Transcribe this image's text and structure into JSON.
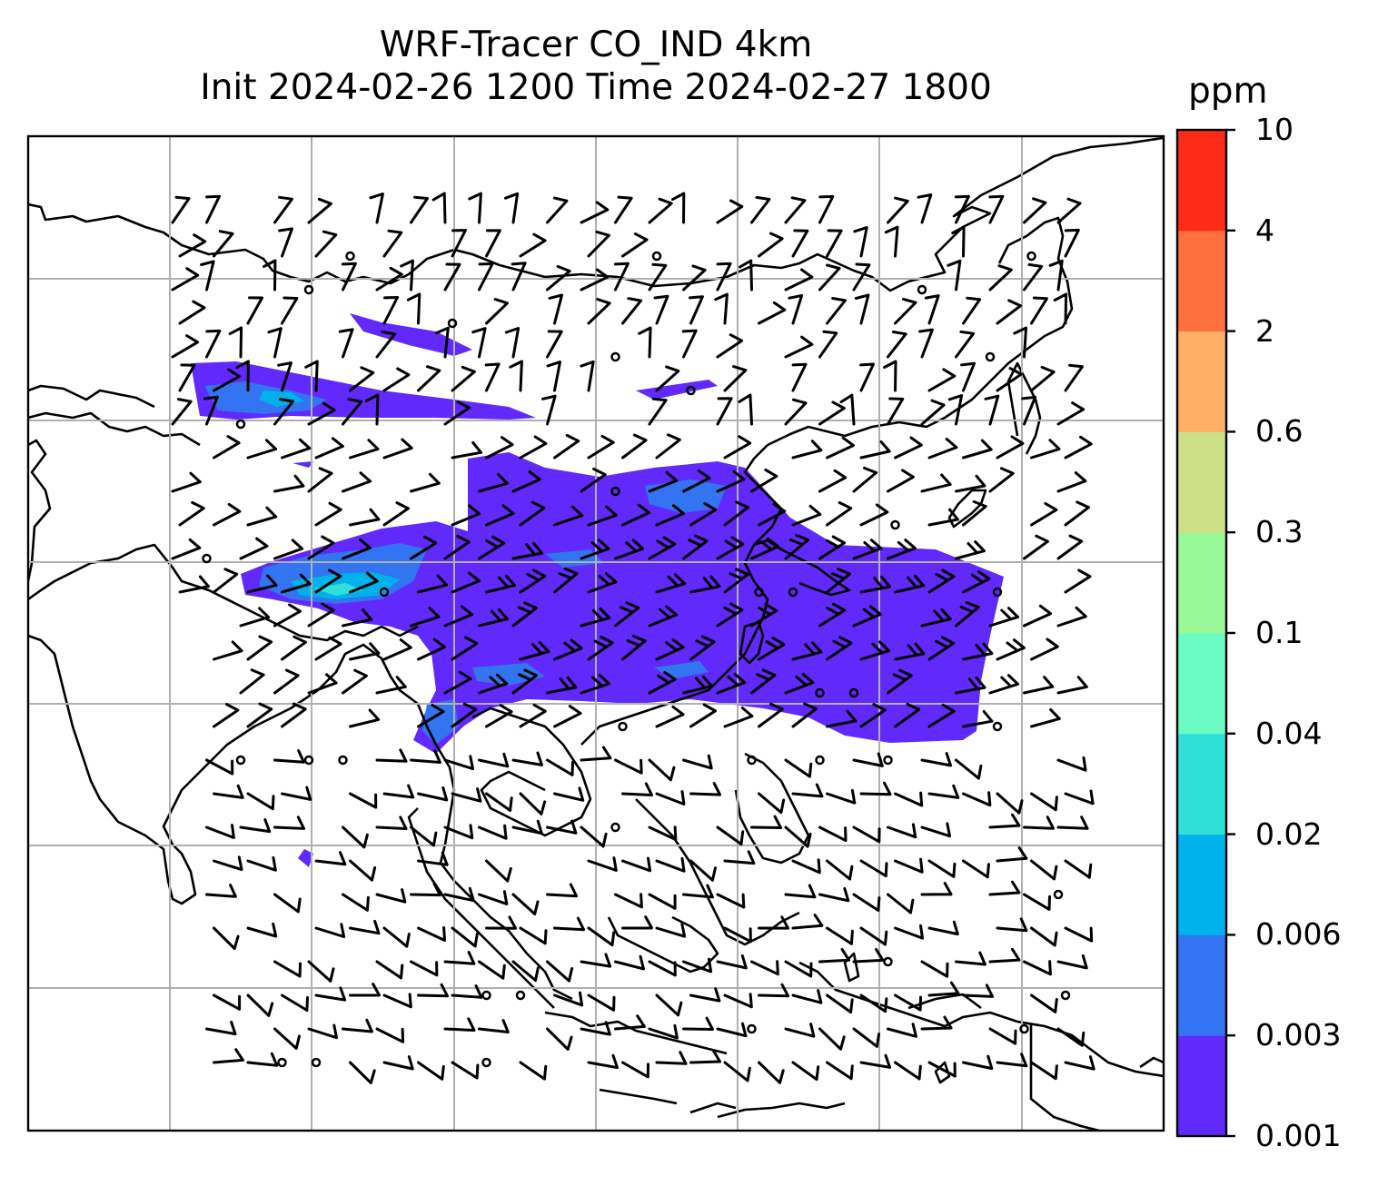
{
  "title": {
    "line1": "WRF-Tracer CO_IND 4km",
    "line2": "Init 2024-02-26 1200 Time 2024-02-27 1800"
  },
  "colorbar": {
    "unit": "ppm",
    "levels": [
      "0.001",
      "0.003",
      "0.006",
      "0.02",
      "0.04",
      "0.1",
      "0.3",
      "0.6",
      "2",
      "4",
      "10"
    ],
    "colors": [
      "#6129fb",
      "#3274f1",
      "#00b2ec",
      "#30e0d8",
      "#6afcc2",
      "#98f996",
      "#cde088",
      "#fdb066",
      "#ff7041",
      "#ff2a18"
    ]
  },
  "map": {
    "field": "CO_IND tracer concentration with wind barbs",
    "grid_color": "#b0b0b0",
    "coastline_color": "#000000"
  }
}
